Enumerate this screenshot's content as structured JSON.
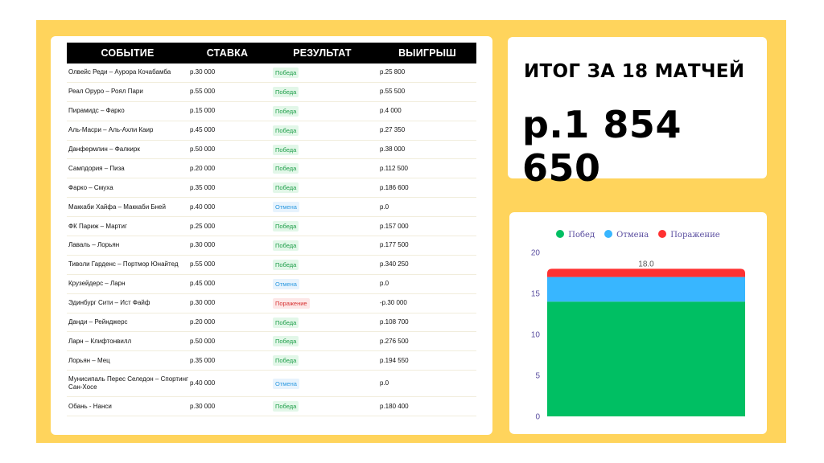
{
  "table": {
    "headers": [
      "СОБЫТИЕ",
      "СТАВКА",
      "РЕЗУЛЬТАТ",
      "ВЫИГРЫШ"
    ],
    "rows": [
      {
        "event": "Олвейс Реди – Аурора Кочабамба",
        "stake": "р.30 000",
        "result": "Победа",
        "status": "win",
        "payout": "р.25 800"
      },
      {
        "event": "Реал Оруро – Роял Пари",
        "stake": "р.55 000",
        "result": "Победа",
        "status": "win",
        "payout": "р.55 500"
      },
      {
        "event": "Пирамидс – Фарко",
        "stake": "р.15 000",
        "result": "Победа",
        "status": "win",
        "payout": "р.4 000"
      },
      {
        "event": "Аль-Масри – Аль-Ахли Каир",
        "stake": "р.45 000",
        "result": "Победа",
        "status": "win",
        "payout": "р.27 350"
      },
      {
        "event": "Данфермлин – Фалкирк",
        "stake": "р.50 000",
        "result": "Победа",
        "status": "win",
        "payout": "р.38 000"
      },
      {
        "event": "Сампдория – Пиза",
        "stake": "р.20 000",
        "result": "Победа",
        "status": "win",
        "payout": "р.112 500"
      },
      {
        "event": "Фарко – Смуха",
        "stake": "р.35 000",
        "result": "Победа",
        "status": "win",
        "payout": "р.186 600"
      },
      {
        "event": "Маккаби Хайфа – Маккаби Бней",
        "stake": "р.40 000",
        "result": "Отмена",
        "status": "cancel",
        "payout": "р.0"
      },
      {
        "event": "ФК Париж – Мартиг",
        "stake": "р.25 000",
        "result": "Победа",
        "status": "win",
        "payout": "р.157 000"
      },
      {
        "event": "Лаваль – Лорьян",
        "stake": "р.30 000",
        "result": "Победа",
        "status": "win",
        "payout": "р.177 500"
      },
      {
        "event": "Тиволи Гарденс – Портмор Юнайтед",
        "stake": "р.55 000",
        "result": "Победа",
        "status": "win",
        "payout": "р.340 250"
      },
      {
        "event": "Крузейдерс – Ларн",
        "stake": "р.45 000",
        "result": "Отмена",
        "status": "cancel",
        "payout": "р.0"
      },
      {
        "event": "Эдинбург Сити – Ист Файф",
        "stake": "р.30 000",
        "result": "Поражение",
        "status": "loss",
        "payout": "-р.30 000"
      },
      {
        "event": "Данди – Рейнджерс",
        "stake": "р.20 000",
        "result": "Победа",
        "status": "win",
        "payout": "р.108 700"
      },
      {
        "event": "Ларн – Клифтонвилл",
        "stake": "р.50 000",
        "result": "Победа",
        "status": "win",
        "payout": "р.276 500"
      },
      {
        "event": "Лорьян – Мец",
        "stake": "р.35 000",
        "result": "Победа",
        "status": "win",
        "payout": "р.194 550"
      },
      {
        "event": "Мунисипаль Перес Селедон – Спортинг Сан-Хосе",
        "stake": "р.40 000",
        "result": "Отмена",
        "status": "cancel",
        "payout": "р.0"
      },
      {
        "event": "Обань - Нанси",
        "stake": "р.30 000",
        "result": "Победа",
        "status": "win",
        "payout": "р.180 400"
      }
    ]
  },
  "summary": {
    "title": "ИТОГ ЗА 18 МАТЧЕЙ",
    "total": "р.1 854 650"
  },
  "colors": {
    "win": "#00BF63",
    "cancel": "#38B6FF",
    "loss": "#FF3131",
    "frame": "#FFD45C"
  },
  "chart_data": {
    "type": "bar",
    "stacked": true,
    "categories": [
      ""
    ],
    "series": [
      {
        "name": "Побед",
        "values": [
          14
        ],
        "color": "#00BF63"
      },
      {
        "name": "Отмена",
        "values": [
          3
        ],
        "color": "#38B6FF"
      },
      {
        "name": "Поражение",
        "values": [
          1
        ],
        "color": "#FF3131"
      }
    ],
    "total_label": "18.0",
    "ylim": [
      0,
      20
    ],
    "yticks": [
      "0",
      "5",
      "10",
      "15",
      "20"
    ],
    "legend_position": "top",
    "grid": false
  }
}
